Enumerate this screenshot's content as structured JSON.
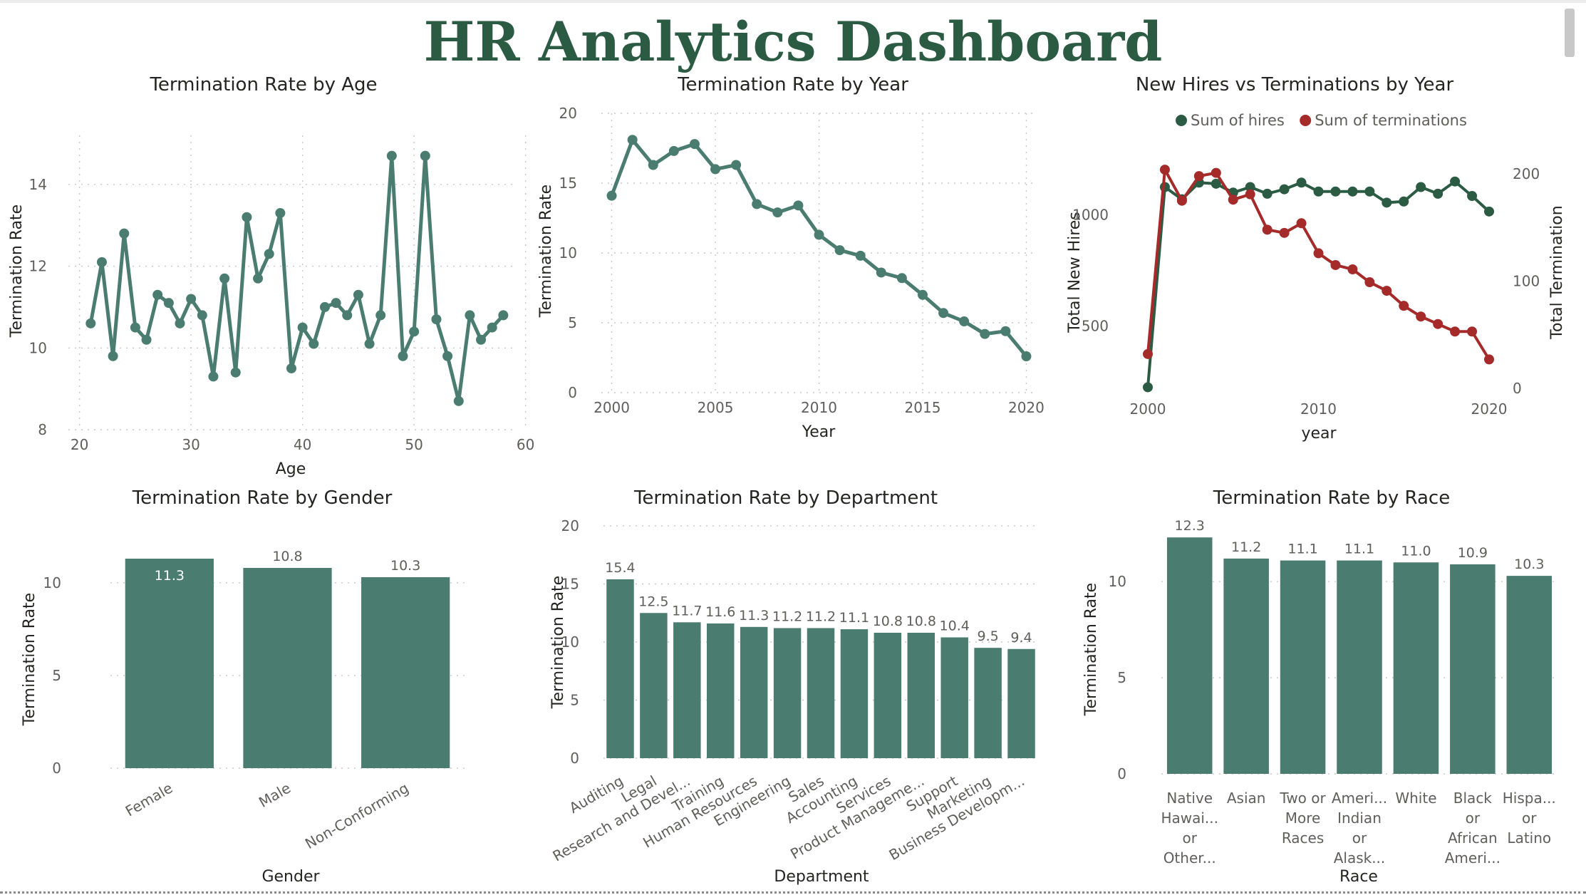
{
  "dashboard": {
    "title": "HR Analytics Dashboard",
    "colors": {
      "accent": "#4a7d6f",
      "hires": "#2c5b43",
      "terminations": "#a52a2a",
      "title": "#2c5b43"
    }
  },
  "chart_data": [
    {
      "id": "age",
      "type": "line",
      "title": "Termination Rate by Age",
      "xlabel": "Age",
      "ylabel": "Termination Rate",
      "xlim": [
        19,
        59
      ],
      "ylim": [
        8,
        15.2
      ],
      "xticks": [
        20,
        30,
        40,
        50,
        60
      ],
      "yticks": [
        8,
        10,
        12,
        14
      ],
      "grid": true,
      "x": [
        21,
        22,
        23,
        24,
        25,
        26,
        27,
        28,
        29,
        30,
        31,
        32,
        33,
        34,
        35,
        36,
        37,
        38,
        39,
        40,
        41,
        42,
        43,
        44,
        45,
        46,
        47,
        48,
        49,
        50,
        51,
        52,
        53,
        54,
        55,
        56,
        57,
        58
      ],
      "values": [
        10.6,
        12.1,
        9.8,
        12.8,
        10.5,
        10.2,
        11.3,
        11.1,
        10.6,
        11.2,
        10.8,
        9.3,
        11.7,
        9.4,
        13.2,
        11.7,
        12.3,
        13.3,
        9.5,
        10.5,
        10.1,
        11.0,
        11.1,
        10.8,
        11.3,
        10.1,
        10.8,
        14.7,
        9.8,
        10.4,
        14.7,
        10.7,
        9.8,
        8.7,
        10.8,
        10.2,
        10.5,
        10.8
      ]
    },
    {
      "id": "year",
      "type": "line",
      "title": "Termination Rate by Year",
      "xlabel": "Year",
      "ylabel": "Termination Rate",
      "xlim": [
        1999.5,
        2020.5
      ],
      "ylim": [
        0,
        20
      ],
      "xticks": [
        2000,
        2005,
        2010,
        2015,
        2020
      ],
      "yticks": [
        0,
        5,
        10,
        15,
        20
      ],
      "grid": true,
      "x": [
        2000,
        2001,
        2002,
        2003,
        2004,
        2005,
        2006,
        2007,
        2008,
        2009,
        2010,
        2011,
        2012,
        2013,
        2014,
        2015,
        2016,
        2017,
        2018,
        2019,
        2020
      ],
      "values": [
        14.1,
        18.1,
        16.3,
        17.3,
        17.8,
        16.0,
        16.3,
        13.5,
        12.9,
        13.4,
        11.3,
        10.2,
        9.8,
        8.6,
        8.2,
        7.0,
        5.7,
        5.1,
        4.2,
        4.4,
        2.6
      ]
    },
    {
      "id": "hires",
      "type": "line",
      "title": "New Hires vs Terminations by Year",
      "xlabel": "year",
      "ylabel": "Total New Hires",
      "y2label": "Total Termination",
      "legend_placement": "top",
      "xlim": [
        2000,
        2020
      ],
      "xticks": [
        2000,
        2010,
        2020
      ],
      "ylim": [
        220,
        1290
      ],
      "yticks": [
        500,
        1000
      ],
      "y2lim": [
        0,
        222
      ],
      "y2ticks": [
        0,
        100,
        200
      ],
      "x": [
        2000,
        2001,
        2002,
        2003,
        2004,
        2005,
        2006,
        2007,
        2008,
        2009,
        2010,
        2011,
        2012,
        2013,
        2014,
        2015,
        2016,
        2017,
        2018,
        2019,
        2020
      ],
      "series": [
        {
          "name": "Sum of hires",
          "axis": "left",
          "color": "#2c5b43",
          "values": [
            225,
            1125,
            1070,
            1145,
            1140,
            1100,
            1125,
            1095,
            1115,
            1145,
            1105,
            1105,
            1105,
            1105,
            1055,
            1060,
            1125,
            1095,
            1150,
            1085,
            1015
          ]
        },
        {
          "name": "Sum of terminations",
          "axis": "right",
          "color": "#a52a2a",
          "values": [
            32,
            204,
            175,
            198,
            201,
            176,
            181,
            148,
            145,
            154,
            126,
            115,
            111,
            99,
            91,
            77,
            67,
            60,
            53,
            53,
            27
          ]
        }
      ]
    },
    {
      "id": "gender",
      "type": "bar",
      "title": "Termination Rate by Gender",
      "xlabel": "Gender",
      "ylabel": "Termination Rate",
      "ylim": [
        0,
        11.8
      ],
      "yticks": [
        0,
        5,
        10
      ],
      "categories": [
        "Female",
        "Male",
        "Non-Conforming"
      ],
      "values": [
        11.3,
        10.8,
        10.3
      ],
      "data_labels": [
        "11.3",
        "10.8",
        "10.3"
      ]
    },
    {
      "id": "department",
      "type": "bar",
      "title": "Termination Rate by Department",
      "xlabel": "Department",
      "ylabel": "Termination Rate",
      "ylim": [
        0,
        20
      ],
      "yticks": [
        0,
        5,
        10,
        15,
        20
      ],
      "categories": [
        "Auditing",
        "Legal",
        "Research and Devel...",
        "Training",
        "Human Resources",
        "Engineering",
        "Sales",
        "Accounting",
        "Services",
        "Product Manageme...",
        "Support",
        "Marketing",
        "Business Developm..."
      ],
      "values": [
        15.4,
        12.5,
        11.7,
        11.6,
        11.3,
        11.2,
        11.2,
        11.1,
        10.8,
        10.8,
        10.4,
        9.5,
        9.4
      ],
      "data_labels": [
        "15.4",
        "12.5",
        "11.7",
        "11.6",
        "11.3",
        "11.2",
        "11.2",
        "11.1",
        "10.8",
        "10.8",
        "10.4",
        "9.5",
        "9.4"
      ]
    },
    {
      "id": "race",
      "type": "bar",
      "title": "Termination Rate by Race",
      "xlabel": "Race",
      "ylabel": "Termination Rate",
      "ylim": [
        0,
        12.9
      ],
      "yticks": [
        0,
        5,
        10
      ],
      "categories": [
        [
          "Native",
          "Hawai...",
          "or",
          "Other..."
        ],
        [
          "Asian"
        ],
        [
          "Two or",
          "More",
          "Races"
        ],
        [
          "Ameri...",
          "Indian",
          "or",
          "Alask..."
        ],
        [
          "White"
        ],
        [
          "Black",
          "or",
          "African",
          "Ameri..."
        ],
        [
          "Hispa...",
          "or",
          "Latino"
        ]
      ],
      "values": [
        12.3,
        11.2,
        11.1,
        11.1,
        11.0,
        10.9,
        10.3
      ],
      "data_labels": [
        "12.3",
        "11.2",
        "11.1",
        "11.1",
        "11.0",
        "10.9",
        "10.3"
      ]
    }
  ]
}
